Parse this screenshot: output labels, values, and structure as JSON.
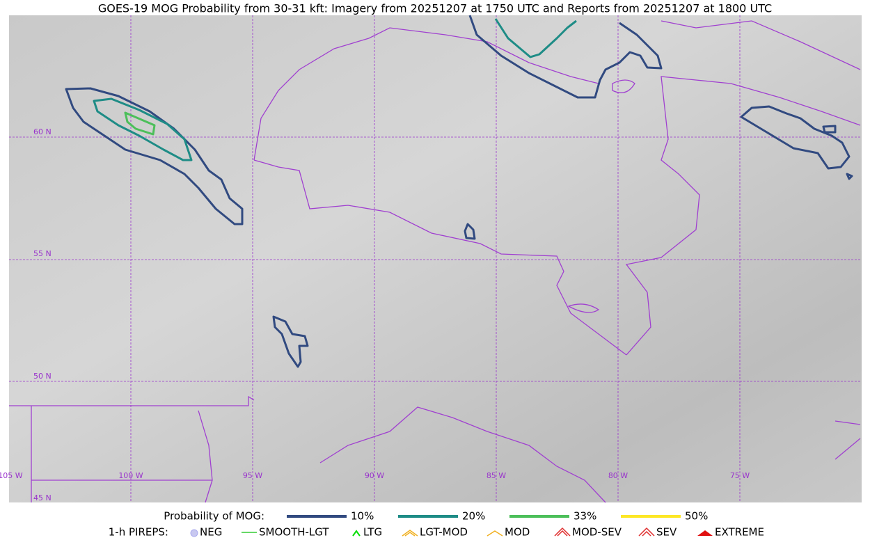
{
  "title": "GOES-19 MOG Probability from 30-31 kft: Imagery from 20251207 at 1750 UTC and Reports from 20251207 at 1800 UTC",
  "map": {
    "lat_labels": [
      "60 N",
      "55 N",
      "50 N",
      "45 N"
    ],
    "lon_labels": [
      "105 W",
      "100 W",
      "95 W",
      "90 W",
      "85 W",
      "80 W",
      "75 W"
    ]
  },
  "legend": {
    "probability": {
      "label": "Probability of MOG:",
      "items": [
        {
          "label": "10%",
          "color": "#314a80"
        },
        {
          "label": "20%",
          "color": "#1e8c86"
        },
        {
          "label": "33%",
          "color": "#4cbf5a"
        },
        {
          "label": "50%",
          "color": "#fde725"
        }
      ]
    },
    "pireps": {
      "label": "1-h PIREPS:",
      "items": [
        "NEG",
        "SMOOTH-LGT",
        "LTG",
        "LGT-MOD",
        "MOD",
        "MOD-SEV",
        "SEV",
        "EXTREME"
      ]
    }
  }
}
